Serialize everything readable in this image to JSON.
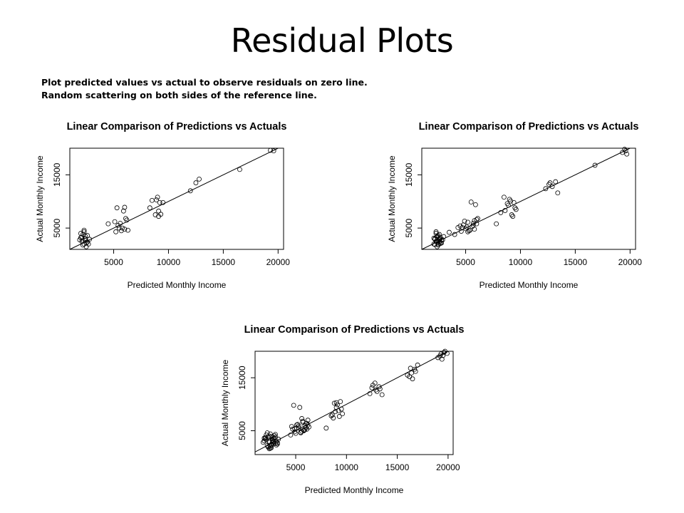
{
  "slide": {
    "title": "Residual Plots",
    "notes": [
      "Plot predicted values vs actual to observe residuals on zero line.",
      "Random scattering on both sides of the reference line."
    ]
  },
  "chart_data": [
    {
      "type": "scatter",
      "title": "Linear Comparison of Predictions vs Actuals",
      "xlabel": "Predicted Monthly Income",
      "ylabel": "Actual Monthly Income",
      "xlim": [
        1000,
        20500
      ],
      "ylim": [
        1000,
        20000
      ],
      "xticks": [
        5000,
        10000,
        15000,
        20000
      ],
      "yticks": [
        5000,
        15000
      ],
      "reference_line": {
        "slope": 1,
        "intercept": 0
      },
      "grid": false,
      "series": [
        {
          "x": [
            1900,
            2000,
            2100,
            2200,
            2300,
            2400,
            2500,
            2600,
            2000,
            2200,
            2400,
            2700,
            2300,
            2100,
            2500,
            2800,
            2200,
            2600,
            2400,
            2300,
            4500,
            5100,
            5300,
            5500,
            5700,
            5900,
            6100,
            6300,
            5400,
            5800,
            6000,
            6200,
            5200,
            5600,
            6000,
            8300,
            8500,
            8800,
            9000,
            9100,
            9300,
            9500,
            9100,
            8900,
            9200,
            12000,
            12500,
            12800,
            16500,
            19300,
            19600
          ],
          "y": [
            2800,
            3200,
            2500,
            3800,
            2000,
            3500,
            1500,
            2400,
            4000,
            2600,
            3000,
            2000,
            4600,
            3300,
            2200,
            2900,
            1800,
            3600,
            2700,
            4300,
            5800,
            6200,
            8800,
            5000,
            4500,
            8200,
            6800,
            4600,
            5500,
            5000,
            4800,
            6500,
            4300,
            5900,
            8900,
            8800,
            10200,
            7500,
            10800,
            7200,
            7600,
            9800,
            8200,
            10300,
            9800,
            12000,
            13500,
            14200,
            16000,
            19600,
            19500
          ]
        }
      ]
    },
    {
      "type": "scatter",
      "title": "Linear Comparison of Predictions vs Actuals",
      "xlabel": "Predicted Monthly Income",
      "ylabel": "Actual Monthly Income",
      "xlim": [
        1000,
        20500
      ],
      "ylim": [
        1000,
        20000
      ],
      "xticks": [
        5000,
        10000,
        15000,
        20000
      ],
      "yticks": [
        5000,
        15000
      ],
      "reference_line": {
        "slope": 1,
        "intercept": 0
      },
      "grid": false,
      "series": [
        {
          "x": [
            2100,
            2200,
            2300,
            2400,
            2500,
            2600,
            2700,
            2800,
            2300,
            2500,
            2400,
            2600,
            2200,
            2700,
            2100,
            2500,
            2800,
            2400,
            2600,
            2300,
            2200,
            2500,
            2700,
            2900,
            3000,
            2400,
            2600,
            3500,
            4000,
            4300,
            4600,
            4800,
            5000,
            5200,
            5400,
            5600,
            5800,
            6000,
            4500,
            4900,
            5300,
            5700,
            6100,
            5500,
            5900,
            5100,
            5800,
            6000,
            5700,
            5200,
            4700,
            7800,
            8200,
            8500,
            8800,
            9000,
            9200,
            9400,
            9600,
            8600,
            9100,
            9300,
            8900,
            9500,
            12300,
            12600,
            12900,
            13200,
            13400,
            12700,
            16800,
            19300,
            19500,
            19700,
            19600
          ],
          "y": [
            2000,
            3000,
            2500,
            3500,
            1800,
            2800,
            3200,
            2200,
            4000,
            2600,
            1500,
            3800,
            2900,
            2300,
            3100,
            2000,
            2700,
            3300,
            2400,
            4300,
            1900,
            3600,
            2100,
            2800,
            3400,
            2500,
            3000,
            4200,
            3800,
            5100,
            4400,
            5600,
            4900,
            6100,
            4600,
            5300,
            6400,
            5800,
            5400,
            6300,
            4500,
            5900,
            6800,
            9900,
            9400,
            5200,
            4800,
            6600,
            5500,
            4300,
            5100,
            5800,
            7900,
            10800,
            9600,
            10400,
            7500,
            9800,
            8500,
            8300,
            10100,
            7200,
            9300,
            8800,
            12400,
            13200,
            12800,
            13700,
            11600,
            13500,
            16800,
            19200,
            19800,
            18900,
            19500
          ]
        }
      ]
    },
    {
      "type": "scatter",
      "title": "Linear Comparison of Predictions vs Actuals",
      "xlabel": "Predicted Monthly Income",
      "ylabel": "Actual Monthly Income",
      "xlim": [
        1000,
        20500
      ],
      "ylim": [
        500,
        20000
      ],
      "xticks": [
        5000,
        10000,
        15000,
        20000
      ],
      "yticks": [
        5000,
        15000
      ],
      "reference_line": {
        "slope": 1,
        "intercept": 0
      },
      "grid": false,
      "series": [
        {
          "x": [
            1800,
            2000,
            2200,
            2400,
            2600,
            2800,
            3000,
            3200,
            2100,
            2300,
            2500,
            2700,
            2900,
            3100,
            1900,
            2400,
            2600,
            2800,
            3300,
            2200,
            2500,
            2700,
            3000,
            2000,
            2300,
            2600,
            2900,
            3100,
            2400,
            2800,
            2100,
            2500,
            2700,
            3200,
            2300,
            2600,
            1900,
            2400,
            2800,
            3000,
            4500,
            4700,
            4900,
            5100,
            5300,
            5500,
            5700,
            5900,
            6100,
            6300,
            4800,
            5200,
            5600,
            6000,
            6200,
            5400,
            5800,
            4600,
            5000,
            5700,
            6100,
            5900,
            5500,
            5300,
            6000,
            4900,
            5600,
            5800,
            6200,
            5100,
            8000,
            8500,
            8800,
            9000,
            9200,
            9400,
            9600,
            8700,
            9100,
            9300,
            8900,
            9500,
            9000,
            8600,
            12300,
            12600,
            12900,
            13200,
            13500,
            12800,
            13000,
            12500,
            13300,
            16000,
            16300,
            16500,
            16800,
            17000,
            16400,
            16700,
            16200,
            19000,
            19300,
            19500,
            19700,
            19900,
            19400,
            19600,
            19200
          ],
          "y": [
            2800,
            3500,
            2200,
            4000,
            1800,
            3000,
            3800,
            2500,
            3300,
            2000,
            4400,
            2700,
            3600,
            2300,
            3100,
            1600,
            3900,
            2900,
            3400,
            4600,
            2100,
            3200,
            2600,
            3700,
            1900,
            2400,
            4100,
            3000,
            2800,
            3500,
            4200,
            1700,
            3300,
            2700,
            3800,
            2200,
            3600,
            3000,
            2500,
            4300,
            4200,
            5300,
            4800,
            6100,
            5500,
            4600,
            6800,
            5200,
            6400,
            5700,
            9800,
            6200,
            4900,
            5600,
            7000,
            9400,
            5100,
            5800,
            4500,
            6600,
            5300,
            6000,
            4700,
            5900,
            6300,
            5400,
            7300,
            5000,
            6100,
            5500,
            5500,
            7800,
            10200,
            9400,
            8800,
            10500,
            8200,
            7400,
            9900,
            7700,
            8600,
            9100,
            10300,
            8000,
            12000,
            13600,
            12700,
            13300,
            11800,
            14000,
            12400,
            13100,
            12900,
            15500,
            16800,
            14800,
            16200,
            17400,
            15900,
            16600,
            15200,
            18800,
            19500,
            19200,
            20000,
            19600,
            18500,
            19800,
            19100
          ]
        }
      ]
    }
  ]
}
